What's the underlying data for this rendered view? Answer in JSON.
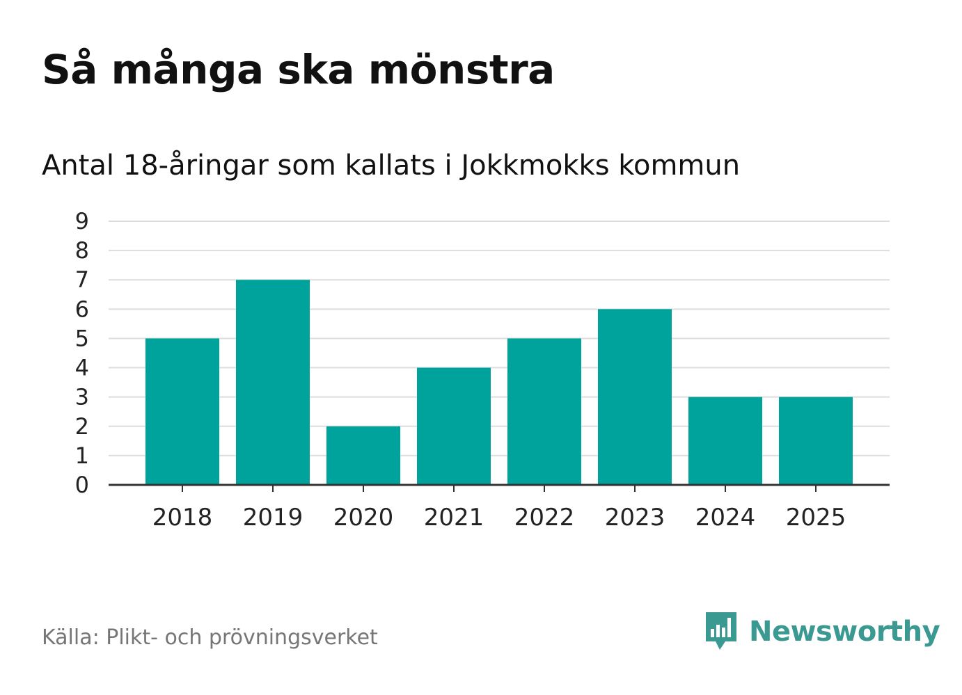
{
  "title": "Så många ska mönstra",
  "subtitle": "Antal 18-åringar som kallats i Jokkmokks kommun",
  "source": "Källa: Plikt- och prövningsverket",
  "brand": {
    "name": "Newsworthy",
    "icon": "newsworthy-logo-icon",
    "color": "#3a9a92"
  },
  "colors": {
    "bar": "#00a39b",
    "grid": "#dddddd",
    "axis": "#333333"
  },
  "chart_data": {
    "type": "bar",
    "categories": [
      "2018",
      "2019",
      "2020",
      "2021",
      "2022",
      "2023",
      "2024",
      "2025"
    ],
    "values": [
      5,
      7,
      2,
      4,
      5,
      6,
      3,
      3
    ],
    "yticks": [
      0,
      1,
      2,
      3,
      4,
      5,
      6,
      7,
      8,
      9
    ],
    "ylim": [
      0,
      9
    ],
    "grid": true,
    "legend": "none",
    "xlabel": "",
    "ylabel": ""
  }
}
